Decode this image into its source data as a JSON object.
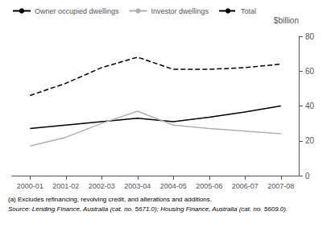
{
  "chart_data": {
    "type": "line",
    "categories": [
      "2000-01",
      "2001-02",
      "2002-03",
      "2003-04",
      "2004-05",
      "2005-06",
      "2006-07",
      "2007-08"
    ],
    "series": [
      {
        "name": "Owner occupied dwellings",
        "color": "#000000",
        "values": [
          27,
          29,
          31,
          33,
          31,
          33.5,
          36.5,
          40
        ]
      },
      {
        "name": "Investor dwellings",
        "color": "#b0b0b0",
        "values": [
          17,
          22,
          30,
          37,
          29,
          27,
          25.5,
          24
        ]
      },
      {
        "name": "Total",
        "color": "#000000",
        "line_style": "dashed",
        "values": [
          46,
          53,
          62,
          68,
          61,
          61,
          62,
          64
        ]
      }
    ],
    "ylabel": "$billion",
    "ylim": [
      0,
      80
    ],
    "yticks": [
      0,
      20,
      40,
      60,
      80
    ],
    "grid": false,
    "legend": "upper left",
    "annotations": [
      "(a) Excludes refinancing, revolving credit, and alterations and additions.",
      "Source: Lending Finance, Australia (cat. no. 5671.0); Housing Finance, Australia (cat. no. 5609.0)."
    ]
  }
}
